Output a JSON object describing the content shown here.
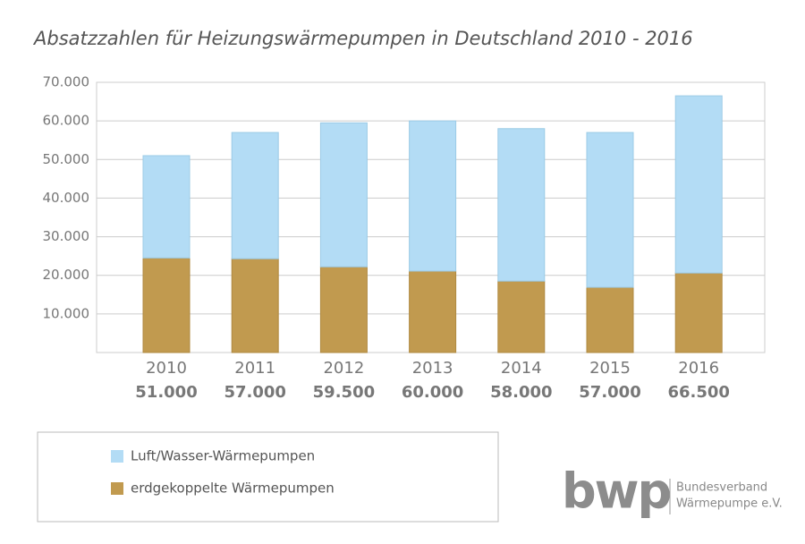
{
  "chart_data": {
    "type": "stacked-bar",
    "title": "Absatzzahlen für Heizungswärmepumpen in Deutschland 2010 - 2016",
    "categories": [
      "2010",
      "2011",
      "2012",
      "2013",
      "2014",
      "2015",
      "2016"
    ],
    "series": [
      {
        "name": "erdgekoppelte Wärmepumpen",
        "color": "#c19a4f",
        "values": [
          24500,
          24300,
          22200,
          21100,
          18500,
          16900,
          20600
        ]
      },
      {
        "name": "Luft/Wasser-Wärmepumpen",
        "color": "#b3dcf5",
        "values": [
          26500,
          32700,
          37300,
          38900,
          39500,
          40100,
          45900
        ]
      }
    ],
    "totals": [
      {
        "value": 51000,
        "label": "51.000"
      },
      {
        "value": 57000,
        "label": "57.000"
      },
      {
        "value": 59500,
        "label": "59.500"
      },
      {
        "value": 60000,
        "label": "60.000"
      },
      {
        "value": 58000,
        "label": "58.000"
      },
      {
        "value": 57000,
        "label": "57.000"
      },
      {
        "value": 66500,
        "label": "66.500"
      }
    ],
    "ylim": [
      0,
      70000
    ],
    "yticks": [
      {
        "value": 10000,
        "label": "10.000"
      },
      {
        "value": 20000,
        "label": "20.000"
      },
      {
        "value": 30000,
        "label": "30.000"
      },
      {
        "value": 40000,
        "label": "40.000"
      },
      {
        "value": 50000,
        "label": "50.000"
      },
      {
        "value": 60000,
        "label": "60.000"
      },
      {
        "value": 70000,
        "label": "70.000"
      }
    ],
    "grid": true
  },
  "logo": {
    "mark": "bwp",
    "line1": "Bundesverband",
    "line2": "Wärmepumpe e.V."
  }
}
